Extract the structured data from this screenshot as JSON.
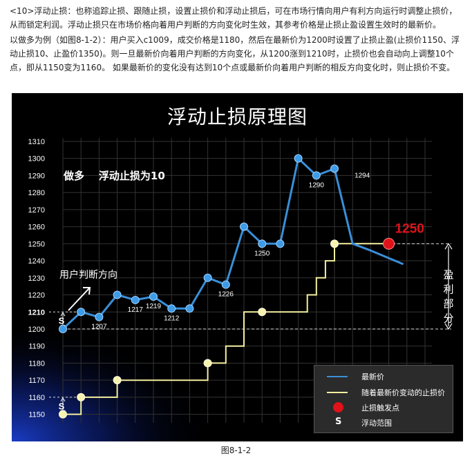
{
  "intro": {
    "paragraph1": "<10>浮动止损：也称追踪止损、跟随止损，设置止损价和浮动止损后，可在市场行情向用户有利方向运行时调整止损价，从而锁定利润。浮动止损只在市场价格向着用户判断的方向变化时生效，其参考价格是止损止盈设置生效时的最新价。",
    "paragraph2": "以做多为例（如图8-1-2）：用户买入c1009，成交价格是1180，然后在最新价为1200时设置了止损止盈(止损价1150、浮动止损10、止盈价1350)。则一旦最新价向着用户判断的方向变化，从1200涨到1210时，止损价也会自动向上调整10个点，即从1150变为1160。 如果最新价的变化没有达到10个点或最新价向着用户判断的相反方向变化时，则止损价不变。"
  },
  "figure_caption": "图8-1-2",
  "chart_data": {
    "type": "line",
    "title": "浮动止损原理图",
    "subtitle": "做多    浮动止损为10",
    "direction_label": "用户判断方向",
    "profit_label": "盈利部分",
    "trigger_label": "1250",
    "ylim": [
      1145,
      1312
    ],
    "yticks": [
      1150,
      1160,
      1170,
      1180,
      1190,
      1200,
      1210,
      1220,
      1230,
      1240,
      1250,
      1260,
      1270,
      1280,
      1290,
      1300,
      1310
    ],
    "grid": true,
    "legend_position": "bottom-right",
    "colors": {
      "latest_price": "#3a8fd9",
      "stop_price": "#f5f0a0",
      "trigger": "#e0121a",
      "background": "#000000",
      "grid": "#333333"
    },
    "series": [
      {
        "name": "最新价",
        "x": [
          0,
          1,
          2,
          3,
          4,
          5,
          6,
          7,
          8,
          9,
          10,
          11,
          12,
          13,
          14,
          15,
          16,
          17,
          18.8
        ],
        "values": [
          1200,
          1210,
          1207,
          1220,
          1217,
          1219,
          1212,
          1212,
          1230,
          1226,
          1260,
          1250,
          1250,
          1300,
          1290,
          1294,
          1250,
          1246,
          1238
        ]
      },
      {
        "name": "随着最新价变动的止损价",
        "points": [
          [
            0,
            1150
          ],
          [
            1,
            1150
          ],
          [
            1,
            1160
          ],
          [
            3,
            1160
          ],
          [
            3,
            1170
          ],
          [
            8,
            1170
          ],
          [
            8,
            1180
          ],
          [
            9,
            1180
          ],
          [
            9,
            1190
          ],
          [
            10,
            1190
          ],
          [
            10,
            1210
          ],
          [
            13.5,
            1210
          ],
          [
            13.5,
            1220
          ],
          [
            14,
            1220
          ],
          [
            14,
            1230
          ],
          [
            14.5,
            1230
          ],
          [
            14.5,
            1240
          ],
          [
            15,
            1240
          ],
          [
            15,
            1250
          ],
          [
            18,
            1250
          ]
        ]
      }
    ],
    "markers": {
      "stop_points": [
        [
          0,
          1150
        ],
        [
          1,
          1160
        ],
        [
          3,
          1170
        ],
        [
          8,
          1180
        ],
        [
          11,
          1210
        ],
        [
          15,
          1250
        ]
      ],
      "price_dot": [
        0,
        1200
      ],
      "trigger_point": [
        18,
        1250
      ]
    },
    "data_labels": [
      {
        "x": 2,
        "y": 1207,
        "text": "1207"
      },
      {
        "x": 4,
        "y": 1217,
        "text": "1217"
      },
      {
        "x": 5,
        "y": 1219,
        "text": "1219"
      },
      {
        "x": 6,
        "y": 1212,
        "text": "1212"
      },
      {
        "x": 9,
        "y": 1226,
        "text": "1226"
      },
      {
        "x": 11,
        "y": 1250,
        "text": "1250"
      },
      {
        "x": 14,
        "y": 1290,
        "text": "1290"
      },
      {
        "x": 16,
        "y": 1294,
        "text": "1294"
      }
    ],
    "legend": [
      {
        "label": "最新价",
        "kind": "line",
        "color": "#3a8fd9"
      },
      {
        "label": "随着最新价变动的止损价",
        "kind": "line",
        "color": "#f5f0a0"
      },
      {
        "label": "止损触发点",
        "kind": "dot",
        "color": "#e0121a"
      },
      {
        "label": "浮动范围",
        "kind": "s",
        "symbol": "S"
      }
    ],
    "s_symbol": "S"
  }
}
